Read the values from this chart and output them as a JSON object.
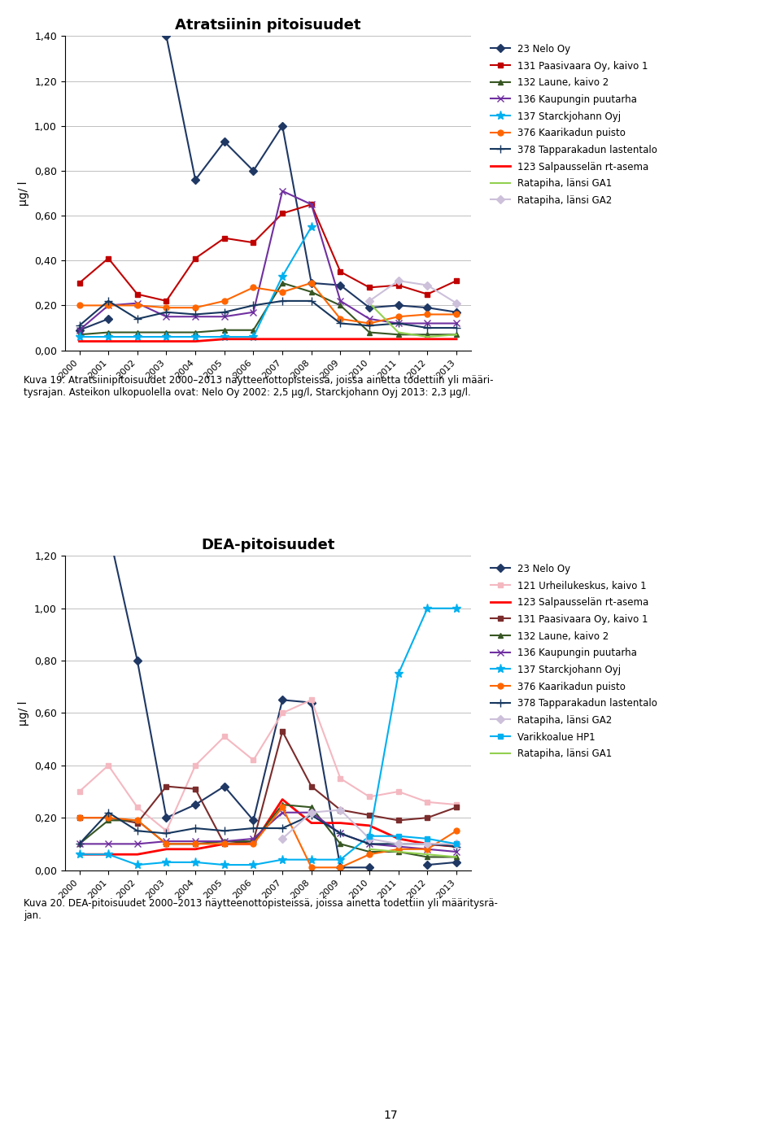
{
  "chart1": {
    "title": "Atratsiinin pitoisuudet",
    "ylabel": "μg/ l",
    "years": [
      2000,
      2001,
      2002,
      2003,
      2004,
      2005,
      2006,
      2007,
      2008,
      2009,
      2010,
      2011,
      2012,
      2013
    ],
    "ylim": [
      0.0,
      1.4
    ],
    "yticks": [
      0.0,
      0.2,
      0.4,
      0.6,
      0.8,
      1.0,
      1.2,
      1.4
    ],
    "ytick_labels": [
      "0,00",
      "0,20",
      "0,40",
      "0,60",
      "0,80",
      "1,00",
      "1,20",
      "1,40"
    ],
    "series": [
      {
        "label": "23 Nelo Oy",
        "color": "#1F3864",
        "marker": "D",
        "linewidth": 1.5,
        "markersize": 5,
        "values": [
          0.09,
          0.14,
          null,
          1.4,
          0.76,
          0.93,
          0.8,
          1.0,
          0.3,
          0.29,
          0.19,
          0.2,
          0.19,
          0.17
        ]
      },
      {
        "label": "131 Paasivaara Oy, kaivo 1",
        "color": "#C00000",
        "marker": "s",
        "linewidth": 1.5,
        "markersize": 5,
        "values": [
          0.3,
          0.41,
          0.25,
          0.22,
          0.41,
          0.5,
          0.48,
          0.61,
          0.65,
          0.35,
          0.28,
          0.29,
          0.25,
          0.31
        ]
      },
      {
        "label": "132 Laune, kaivo 2",
        "color": "#375623",
        "marker": "^",
        "linewidth": 1.5,
        "markersize": 5,
        "values": [
          0.07,
          0.08,
          0.08,
          0.08,
          0.08,
          0.09,
          0.09,
          0.3,
          0.26,
          0.2,
          0.08,
          0.07,
          0.07,
          0.07
        ]
      },
      {
        "label": "136 Kaupungin puutarha",
        "color": "#7030A0",
        "marker": "x",
        "linewidth": 1.5,
        "markersize": 6,
        "values": [
          0.09,
          0.2,
          0.21,
          0.15,
          0.15,
          0.15,
          0.17,
          0.71,
          0.65,
          0.22,
          0.14,
          0.12,
          0.12,
          0.12
        ]
      },
      {
        "label": "137 Starckjohann Oyj",
        "color": "#00B0F0",
        "marker": "*",
        "linewidth": 1.5,
        "markersize": 8,
        "values": [
          0.06,
          0.06,
          0.06,
          0.06,
          0.06,
          0.06,
          0.06,
          0.33,
          0.55,
          null,
          null,
          null,
          null,
          null
        ]
      },
      {
        "label": "376 Kaarikadun puisto",
        "color": "#FF6600",
        "marker": "o",
        "linewidth": 1.5,
        "markersize": 5,
        "values": [
          0.2,
          0.2,
          0.2,
          0.19,
          0.19,
          0.22,
          0.28,
          0.26,
          0.3,
          0.14,
          0.12,
          0.15,
          0.16,
          0.16
        ]
      },
      {
        "label": "378 Tapparakadun lastentalo",
        "color": "#17375E",
        "marker": "+",
        "linewidth": 1.5,
        "markersize": 7,
        "values": [
          0.11,
          0.22,
          0.14,
          0.17,
          0.16,
          0.17,
          0.2,
          0.22,
          0.22,
          0.12,
          0.11,
          0.12,
          0.1,
          0.1
        ]
      },
      {
        "label": "123 Salpausselän rt-asema",
        "color": "#FF0000",
        "marker": "none",
        "linewidth": 2.0,
        "markersize": 5,
        "values": [
          0.04,
          0.04,
          0.04,
          0.04,
          0.04,
          0.05,
          0.05,
          0.05,
          0.05,
          0.05,
          0.05,
          0.05,
          0.05,
          0.05
        ]
      },
      {
        "label": "Ratapiha, länsi GA1",
        "color": "#92D050",
        "marker": "none",
        "linewidth": 1.5,
        "markersize": 5,
        "values": [
          null,
          null,
          null,
          null,
          null,
          null,
          null,
          null,
          null,
          null,
          0.21,
          0.08,
          0.06,
          0.07
        ]
      },
      {
        "label": "Ratapiha, länsi GA2",
        "color": "#CCC0DA",
        "marker": "D",
        "linewidth": 1.5,
        "markersize": 5,
        "values": [
          null,
          null,
          null,
          null,
          null,
          null,
          null,
          null,
          null,
          null,
          0.22,
          0.31,
          0.29,
          0.21
        ]
      }
    ]
  },
  "caption1": "Kuva 19. Atratsiinipitoisuudet 2000–2013 näytteenottopisteissä, joissa ainetta todettiin yli määri-\ntysrajan. Asteikon ulkopuolella ovat: Nelo Oy 2002: 2,5 μg/l, Starckjohann Oyj 2013: 2,3 μg/l.",
  "chart2": {
    "title": "DEA-pitoisuudet",
    "ylabel": "μg/ l",
    "years": [
      2000,
      2001,
      2002,
      2003,
      2004,
      2005,
      2006,
      2007,
      2008,
      2009,
      2010,
      2011,
      2012,
      2013
    ],
    "ylim": [
      0.0,
      1.2
    ],
    "yticks": [
      0.0,
      0.2,
      0.4,
      0.6,
      0.8,
      1.0,
      1.2
    ],
    "ytick_labels": [
      "0,00",
      "0,20",
      "0,40",
      "0,60",
      "0,80",
      "1,00",
      "1,20"
    ],
    "series": [
      {
        "label": "23 Nelo Oy",
        "color": "#1F3864",
        "marker": "D",
        "linewidth": 1.5,
        "markersize": 5,
        "values": [
          null,
          1.3,
          0.8,
          0.2,
          0.25,
          0.32,
          0.19,
          0.65,
          0.64,
          0.01,
          0.01,
          null,
          0.02,
          0.03
        ]
      },
      {
        "label": "121 Urheilukeskus, kaivo 1",
        "color": "#F4B8C1",
        "marker": "s",
        "linewidth": 1.5,
        "markersize": 5,
        "values": [
          0.3,
          0.4,
          0.24,
          0.15,
          0.4,
          0.51,
          0.42,
          0.6,
          0.65,
          0.35,
          0.28,
          0.3,
          0.26,
          0.25
        ]
      },
      {
        "label": "123 Salpausselän rt-asema",
        "color": "#FF0000",
        "marker": "none",
        "linewidth": 2.0,
        "markersize": 5,
        "values": [
          0.06,
          0.06,
          0.06,
          0.08,
          0.08,
          0.1,
          0.1,
          0.27,
          0.18,
          0.18,
          0.17,
          0.12,
          0.1,
          0.09
        ]
      },
      {
        "label": "131 Paasivaara Oy, kaivo 1",
        "color": "#7B2C2C",
        "marker": "s",
        "linewidth": 1.5,
        "markersize": 5,
        "values": [
          0.2,
          0.2,
          0.18,
          0.32,
          0.31,
          0.1,
          0.11,
          0.53,
          0.32,
          0.23,
          0.21,
          0.19,
          0.2,
          0.24
        ]
      },
      {
        "label": "132 Laune, kaivo 2",
        "color": "#375623",
        "marker": "^",
        "linewidth": 1.5,
        "markersize": 5,
        "values": [
          0.1,
          0.19,
          0.19,
          0.1,
          0.1,
          0.11,
          0.11,
          0.25,
          0.24,
          0.1,
          0.07,
          0.07,
          0.05,
          0.05
        ]
      },
      {
        "label": "136 Kaupungin puutarha",
        "color": "#7030A0",
        "marker": "x",
        "linewidth": 1.5,
        "markersize": 6,
        "values": [
          0.1,
          0.1,
          0.1,
          0.11,
          0.11,
          0.11,
          0.12,
          0.22,
          0.22,
          0.14,
          0.1,
          0.09,
          0.08,
          0.07
        ]
      },
      {
        "label": "137 Starckjohann Oyj",
        "color": "#00B0F0",
        "marker": "*",
        "linewidth": 1.5,
        "markersize": 8,
        "values": [
          0.06,
          0.06,
          0.02,
          0.03,
          0.03,
          0.02,
          0.02,
          0.04,
          0.04,
          0.04,
          0.13,
          0.75,
          1.0,
          1.0
        ]
      },
      {
        "label": "376 Kaarikadun puisto",
        "color": "#FF6600",
        "marker": "o",
        "linewidth": 1.5,
        "markersize": 5,
        "values": [
          0.2,
          0.2,
          0.19,
          0.1,
          0.1,
          0.1,
          0.1,
          0.24,
          0.01,
          0.01,
          0.06,
          0.08,
          0.08,
          0.15
        ]
      },
      {
        "label": "378 Tapparakadun lastentalo",
        "color": "#17375E",
        "marker": "+",
        "linewidth": 1.5,
        "markersize": 7,
        "values": [
          0.1,
          0.22,
          0.15,
          0.14,
          0.16,
          0.15,
          0.16,
          0.16,
          0.21,
          0.14,
          0.1,
          0.1,
          0.1,
          0.09
        ]
      },
      {
        "label": "Ratapiha, länsi GA2",
        "color": "#CCC0DA",
        "marker": "D",
        "linewidth": 1.5,
        "markersize": 5,
        "values": [
          null,
          null,
          null,
          null,
          null,
          null,
          null,
          0.12,
          0.22,
          0.23,
          0.12,
          0.1,
          0.1,
          0.1
        ]
      },
      {
        "label": "Varikkoalue HP1",
        "color": "#00B0F0",
        "marker": "s",
        "linewidth": 1.5,
        "markersize": 5,
        "values": [
          null,
          null,
          null,
          null,
          null,
          null,
          null,
          null,
          null,
          null,
          0.13,
          0.13,
          0.12,
          0.1
        ]
      },
      {
        "label": "Ratapiha, länsi GA1",
        "color": "#92D050",
        "marker": "none",
        "linewidth": 1.5,
        "markersize": 5,
        "values": [
          null,
          null,
          null,
          null,
          null,
          null,
          null,
          null,
          null,
          null,
          0.08,
          0.07,
          0.06,
          0.05
        ]
      }
    ]
  },
  "caption2": "Kuva 20. DEA-pitoisuudet 2000–2013 näytteenottopisteissä, joissa ainetta todettiin yli määritysrä-\njan.",
  "page_number": "17"
}
